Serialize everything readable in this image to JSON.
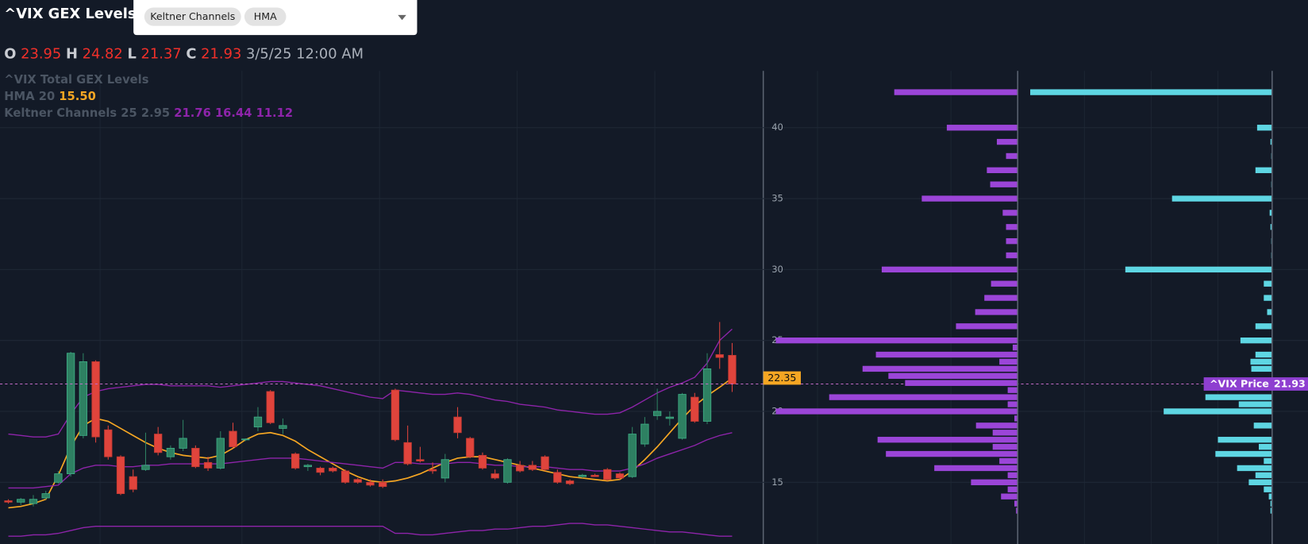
{
  "header": {
    "title": "^VIX GEX Levels",
    "indicators": [
      "Keltner Channels",
      "HMA"
    ]
  },
  "ohlc_labels": [
    "O",
    "H",
    "L",
    "C"
  ],
  "hover_date": "3/5/25 12:00 AM",
  "legend": {
    "gex": "^VIX Total GEX Levels",
    "hma": [
      "HMA",
      "20",
      "15.50"
    ],
    "keltner": [
      "Keltner Channels",
      "25",
      "2.95",
      "21.76",
      "16.44",
      "11.12"
    ]
  },
  "price_label": "^VIX Price",
  "chart_data": [
    {
      "type": "candlestick",
      "up_color": "#2e8062",
      "down_color": "#e0443c",
      "open": [
        13.7,
        13.6,
        13.5,
        13.9,
        15.0,
        15.6,
        18.3,
        23.5,
        18.7,
        16.8,
        15.4,
        15.9,
        18.4,
        16.8,
        17.4,
        17.4,
        16.4,
        16.0,
        18.6,
        18.0,
        18.9,
        21.4,
        18.8,
        17.0,
        16.1,
        16.0,
        16.0,
        15.8,
        15.2,
        15.0,
        15.0,
        21.5,
        17.8,
        16.6,
        15.9,
        15.3,
        19.6,
        18.1,
        16.9,
        15.6,
        15.0,
        16.2,
        16.2,
        16.8,
        15.7,
        15.1,
        15.4,
        15.5,
        15.9,
        15.6,
        15.4,
        17.7,
        19.7,
        19.5,
        18.1,
        21.0,
        19.3,
        24.0,
        23.95
      ],
      "high": [
        13.8,
        13.9,
        14.1,
        14.4,
        15.8,
        24.2,
        24.1,
        23.6,
        19.0,
        16.9,
        15.9,
        18.5,
        18.9,
        17.6,
        19.4,
        17.6,
        16.8,
        18.6,
        19.2,
        18.1,
        20.3,
        21.5,
        19.5,
        17.1,
        16.3,
        16.1,
        16.1,
        15.9,
        15.3,
        15.2,
        15.2,
        21.6,
        19.0,
        17.5,
        16.4,
        17.0,
        20.3,
        18.2,
        17.1,
        15.9,
        16.7,
        16.5,
        16.5,
        16.9,
        15.9,
        15.2,
        15.6,
        15.6,
        16.0,
        15.7,
        18.9,
        19.6,
        21.6,
        20.0,
        21.3,
        21.3,
        24.1,
        26.3,
        24.82
      ],
      "low": [
        13.5,
        13.4,
        13.3,
        13.8,
        14.9,
        15.4,
        18.1,
        17.8,
        16.6,
        14.1,
        14.3,
        15.8,
        16.9,
        16.6,
        17.2,
        16.0,
        15.8,
        15.9,
        17.4,
        17.9,
        18.6,
        19.1,
        18.4,
        15.9,
        15.8,
        15.5,
        15.7,
        14.9,
        14.9,
        14.7,
        14.6,
        17.9,
        16.2,
        16.4,
        15.6,
        15.0,
        18.1,
        16.7,
        15.9,
        15.2,
        14.9,
        15.7,
        15.8,
        15.8,
        14.9,
        14.8,
        15.3,
        15.4,
        15.1,
        15.2,
        15.3,
        17.5,
        19.4,
        19.0,
        18.0,
        19.2,
        19.1,
        23.0,
        21.37
      ],
      "close": [
        13.6,
        13.8,
        13.8,
        14.2,
        15.6,
        24.1,
        23.5,
        18.2,
        16.8,
        14.2,
        14.5,
        16.2,
        17.1,
        17.4,
        18.1,
        16.1,
        16.0,
        18.1,
        17.5,
        18.05,
        19.6,
        19.2,
        19.0,
        16.0,
        16.2,
        15.7,
        15.8,
        15.0,
        15.0,
        14.8,
        14.7,
        18.0,
        16.3,
        16.5,
        15.8,
        16.6,
        18.5,
        16.8,
        16.0,
        15.3,
        16.6,
        15.8,
        15.9,
        15.9,
        15.0,
        14.9,
        15.5,
        15.4,
        15.2,
        15.3,
        18.4,
        19.1,
        20.0,
        19.6,
        21.2,
        19.3,
        23.0,
        23.8,
        21.93
      ],
      "overlays": [
        {
          "color": "#f5a623",
          "values": [
            13.2,
            13.3,
            13.5,
            13.8,
            15.5,
            17.5,
            19.0,
            19.5,
            19.3,
            18.8,
            18.3,
            17.8,
            17.4,
            17.1,
            16.9,
            16.8,
            16.7,
            16.9,
            17.4,
            18.0,
            18.4,
            18.5,
            18.3,
            17.9,
            17.3,
            16.8,
            16.3,
            15.8,
            15.4,
            15.1,
            15.0,
            15.1,
            15.3,
            15.6,
            16.0,
            16.4,
            16.7,
            16.8,
            16.8,
            16.6,
            16.4,
            16.2,
            16.0,
            15.8,
            15.6,
            15.4,
            15.3,
            15.2,
            15.1,
            15.2,
            15.8,
            16.6,
            17.5,
            18.5,
            19.5,
            20.4,
            21.1,
            21.7,
            22.35
          ]
        },
        {
          "color": "#8e24aa",
          "values": [
            18.4,
            18.3,
            18.2,
            18.2,
            18.4,
            19.8,
            21.0,
            21.4,
            21.6,
            21.7,
            21.8,
            21.9,
            21.9,
            21.8,
            21.8,
            21.8,
            21.8,
            21.7,
            21.8,
            21.9,
            22.0,
            22.1,
            22.1,
            22.0,
            21.9,
            21.8,
            21.6,
            21.4,
            21.2,
            21.0,
            20.9,
            21.5,
            21.4,
            21.3,
            21.2,
            21.2,
            21.3,
            21.2,
            21.0,
            20.8,
            20.7,
            20.5,
            20.4,
            20.3,
            20.1,
            20.0,
            19.9,
            19.8,
            19.8,
            19.9,
            20.3,
            20.8,
            21.3,
            21.7,
            22.0,
            22.4,
            23.4,
            25.0,
            25.8
          ]
        },
        {
          "color": "#8e24aa",
          "values": [
            14.6,
            14.6,
            14.6,
            14.7,
            14.8,
            15.6,
            16.0,
            16.2,
            16.2,
            16.1,
            16.1,
            16.2,
            16.2,
            16.3,
            16.3,
            16.3,
            16.3,
            16.3,
            16.4,
            16.5,
            16.6,
            16.7,
            16.7,
            16.7,
            16.6,
            16.5,
            16.4,
            16.3,
            16.2,
            16.1,
            16.0,
            16.4,
            16.4,
            16.3,
            16.3,
            16.3,
            16.4,
            16.4,
            16.3,
            16.2,
            16.2,
            16.1,
            16.1,
            16.1,
            16.0,
            15.9,
            15.9,
            15.8,
            15.8,
            15.8,
            16.0,
            16.3,
            16.7,
            17.0,
            17.3,
            17.6,
            18.0,
            18.3,
            18.5
          ]
        },
        {
          "color": "#8e24aa",
          "values": [
            11.2,
            11.2,
            11.3,
            11.3,
            11.4,
            11.6,
            11.8,
            11.9,
            11.9,
            11.9,
            11.9,
            11.9,
            11.9,
            11.9,
            11.9,
            11.9,
            11.9,
            11.9,
            11.9,
            11.9,
            11.9,
            11.9,
            11.9,
            11.9,
            11.9,
            11.9,
            11.9,
            11.9,
            11.9,
            11.9,
            11.9,
            11.4,
            11.4,
            11.3,
            11.3,
            11.4,
            11.5,
            11.6,
            11.6,
            11.7,
            11.7,
            11.8,
            11.9,
            11.9,
            12.0,
            12.1,
            12.1,
            12.0,
            12.0,
            11.9,
            11.8,
            11.7,
            11.6,
            11.5,
            11.5,
            11.4,
            11.3,
            11.2,
            11.2
          ]
        }
      ],
      "ylim": [
        10.65,
        44
      ],
      "yticks": [
        15,
        20,
        25,
        30,
        35,
        40
      ],
      "grid": true
    },
    {
      "type": "hbar",
      "categories": [
        42.5,
        40,
        39,
        38,
        37,
        36,
        35,
        34,
        33,
        32,
        31,
        30,
        29,
        28,
        27,
        26,
        25,
        24.5,
        24,
        23.5,
        23,
        22.5,
        22,
        21.5,
        21,
        20.5,
        20,
        19.5,
        19,
        18.5,
        18,
        17.5,
        17,
        16.5,
        16,
        15.5,
        15,
        14.5,
        14,
        13.5,
        13
      ],
      "series": [
        {
          "color": "#9b45d8",
          "values": [
            148,
            85,
            25,
            14,
            37,
            33,
            115,
            18,
            14,
            14,
            14,
            163,
            32,
            40,
            51,
            74,
            290,
            6,
            170,
            22,
            186,
            155,
            135,
            12,
            226,
            12,
            290,
            4,
            50,
            30,
            168,
            30,
            158,
            22,
            100,
            12,
            56,
            12,
            20,
            4,
            2
          ]
        },
        {
          "color": "#5ed6e3",
          "values": [
            290,
            18,
            2,
            1,
            20,
            1,
            120,
            3,
            2,
            1,
            1,
            176,
            10,
            10,
            6,
            20,
            38,
            0,
            20,
            26,
            25,
            0,
            0,
            0,
            80,
            40,
            130,
            0,
            22,
            0,
            65,
            16,
            68,
            10,
            42,
            20,
            28,
            10,
            4,
            2,
            2
          ]
        }
      ],
      "ylim": [
        10.65,
        44
      ]
    }
  ]
}
